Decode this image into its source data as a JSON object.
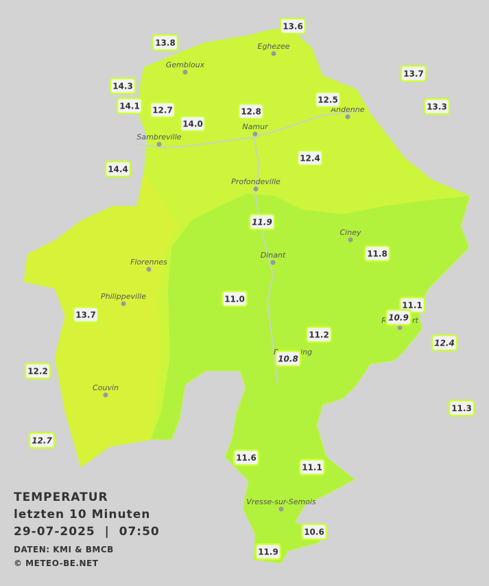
{
  "title": {
    "line1": "TEMPERATUR",
    "line2": "letzten 10 Minuten",
    "line3": "29-07-2025  |  07:50"
  },
  "credits": [
    "DATEN: KMI & BMCB",
    "© METEO-BE.NET"
  ],
  "cities": [
    "Eghezee",
    "Gembloux",
    "Andenne",
    "Namur",
    "Sambreville",
    "Profondeville",
    "Ciney",
    "Dinant",
    "Florennes",
    "Philippeville",
    "Rochefort",
    "Beauraing",
    "Couvin",
    "Vresse-sur-Semois"
  ],
  "stations": [
    {
      "label": "13.6",
      "italic": false
    },
    {
      "label": "13.8",
      "italic": false
    },
    {
      "label": "13.7",
      "italic": false
    },
    {
      "label": "14.3",
      "italic": false
    },
    {
      "label": "12.5",
      "italic": false
    },
    {
      "label": "14.1",
      "italic": false
    },
    {
      "label": "12.7",
      "italic": false
    },
    {
      "label": "12.8",
      "italic": false
    },
    {
      "label": "13.3",
      "italic": false
    },
    {
      "label": "14.0",
      "italic": false
    },
    {
      "label": "12.4",
      "italic": false
    },
    {
      "label": "14.4",
      "italic": false
    },
    {
      "label": "11.9",
      "italic": true
    },
    {
      "label": "11.8",
      "italic": false
    },
    {
      "label": "11.0",
      "italic": false
    },
    {
      "label": "11.1",
      "italic": false
    },
    {
      "label": "10.9",
      "italic": true
    },
    {
      "label": "13.7",
      "italic": false
    },
    {
      "label": "11.2",
      "italic": false
    },
    {
      "label": "12.4",
      "italic": true
    },
    {
      "label": "10.8",
      "italic": true
    },
    {
      "label": "12.2",
      "italic": false
    },
    {
      "label": "11.3",
      "italic": false
    },
    {
      "label": "12.7",
      "italic": true
    },
    {
      "label": "11.6",
      "italic": false
    },
    {
      "label": "11.1",
      "italic": false
    },
    {
      "label": "10.6",
      "italic": false
    },
    {
      "label": "11.9",
      "italic": false
    }
  ]
}
